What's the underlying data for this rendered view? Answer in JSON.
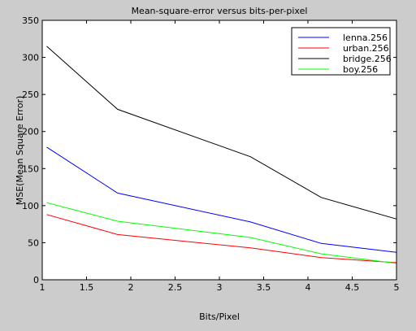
{
  "chart_data": {
    "type": "line",
    "title": "Mean-square-error versus bits-per-pixel",
    "xlabel": "Bits/Pixel",
    "ylabel": "MSE(Mean Square Error)",
    "xlim": [
      1,
      5
    ],
    "ylim": [
      0,
      350
    ],
    "xticks": [
      1,
      1.5,
      2,
      2.5,
      3,
      3.5,
      4,
      4.5,
      5
    ],
    "xtick_labels": [
      "1",
      "1.5",
      "2",
      "2.5",
      "3",
      "3.5",
      "4",
      "4.5",
      "5"
    ],
    "yticks": [
      0,
      50,
      100,
      150,
      200,
      250,
      300,
      350
    ],
    "ytick_labels": [
      "0",
      "50",
      "100",
      "150",
      "200",
      "250",
      "300",
      "350"
    ],
    "grid": false,
    "legend_position": "top-right",
    "series": [
      {
        "name": "lenna.256",
        "color": "#0000ff",
        "x": [
          1.05,
          1.85,
          3.35,
          4.15,
          5.0
        ],
        "y": [
          179,
          117,
          78,
          49,
          37
        ]
      },
      {
        "name": "urban.256",
        "color": "#ff0000",
        "x": [
          1.05,
          1.85,
          3.35,
          4.15,
          5.0
        ],
        "y": [
          88,
          61,
          43,
          30,
          23
        ]
      },
      {
        "name": "bridge.256",
        "color": "#000000",
        "x": [
          1.05,
          1.85,
          3.35,
          4.15,
          5.0
        ],
        "y": [
          315,
          230,
          166,
          111,
          82
        ]
      },
      {
        "name": "boy.256",
        "color": "#00ff00",
        "x": [
          1.05,
          1.85,
          3.35,
          4.15,
          5.0
        ],
        "y": [
          104,
          79,
          57,
          35,
          22
        ]
      }
    ]
  }
}
